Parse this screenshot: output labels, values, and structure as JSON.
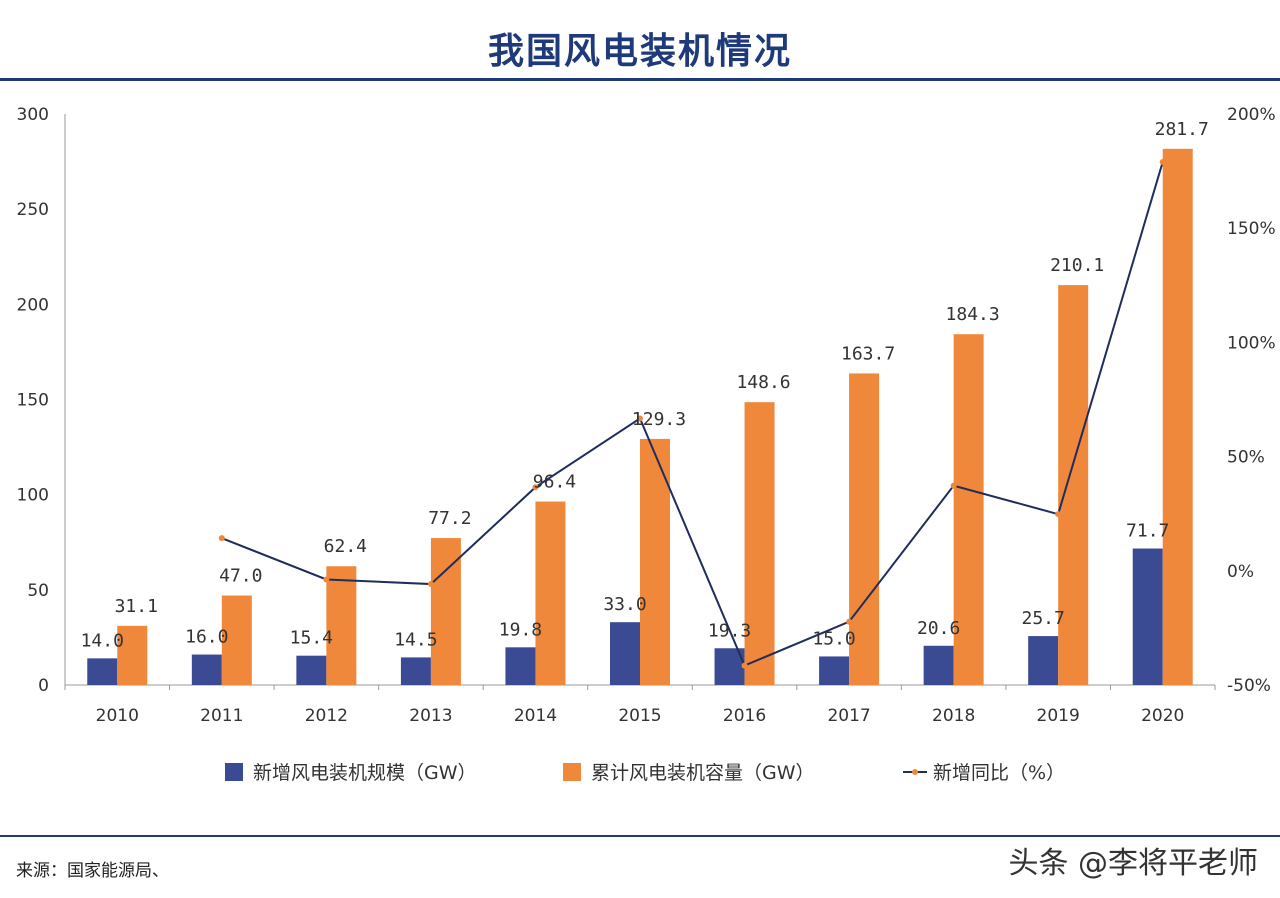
{
  "title": "我国风电装机情况",
  "source": "来源：国家能源局、",
  "watermark": "头条 @李将平老师",
  "colors": {
    "bar_new": "#3a4a93",
    "bar_cum": "#f0883b",
    "line": "#1f2d5c",
    "marker": "#f0883b",
    "rule": "#1f3a7a"
  },
  "chart_data": {
    "type": "bar+line",
    "title": "我国风电装机情况",
    "categories": [
      "2010",
      "2011",
      "2012",
      "2013",
      "2014",
      "2015",
      "2016",
      "2017",
      "2018",
      "2019",
      "2020"
    ],
    "left_axis": {
      "ticks": [
        "0",
        "50",
        "100",
        "150",
        "200",
        "250",
        "300"
      ],
      "ylim": [
        0,
        300
      ]
    },
    "right_axis": {
      "ticks": [
        "-50%",
        "0%",
        "50%",
        "100%",
        "150%",
        "200%"
      ],
      "ylim": [
        -50,
        200
      ]
    },
    "series": [
      {
        "name": "新增风电装机规模（GW）",
        "type": "bar",
        "axis": "left",
        "values": [
          14.0,
          16.0,
          15.4,
          14.5,
          19.8,
          33.0,
          19.3,
          15.0,
          20.6,
          25.7,
          71.7
        ],
        "labels": [
          "14.0",
          "16.0",
          "15.4",
          "14.5",
          "19.8",
          "33.0",
          "19.3",
          "15.0",
          "20.6",
          "25.7",
          "71.7"
        ]
      },
      {
        "name": "累计风电装机容量（GW）",
        "type": "bar",
        "axis": "left",
        "values": [
          31.1,
          47.0,
          62.4,
          77.2,
          96.4,
          129.3,
          148.6,
          163.7,
          184.3,
          210.1,
          281.7
        ],
        "labels": [
          "31.1",
          "47.0",
          "62.4",
          "77.2",
          "96.4",
          "129.3",
          "148.6",
          "163.7",
          "184.3",
          "210.1",
          "281.7"
        ]
      },
      {
        "name": "新增同比（%）",
        "type": "line",
        "axis": "right",
        "values": [
          null,
          14.3,
          -3.8,
          -5.8,
          36.6,
          66.7,
          -41.5,
          -22.3,
          37.3,
          24.8,
          179.0
        ]
      }
    ],
    "legend": [
      "新增风电装机规模（GW）",
      "累计风电装机容量（GW）",
      "新增同比（%）"
    ],
    "legend_position": "bottom"
  }
}
